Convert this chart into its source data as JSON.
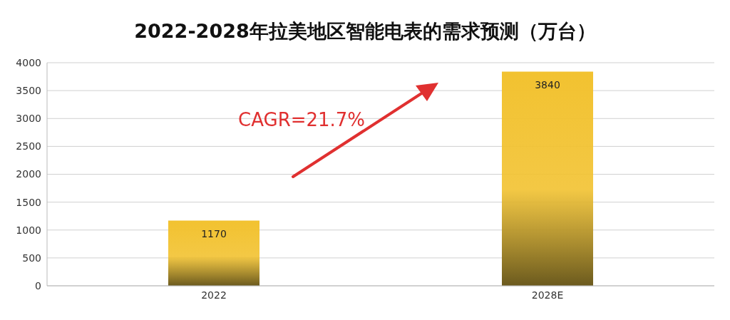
{
  "chart_data": {
    "type": "bar",
    "title": "2022-2028年拉美地区智能电表的需求预测（万台）",
    "categories": [
      "2022",
      "2028E"
    ],
    "values": [
      1170,
      3840
    ],
    "color": "#f2c230",
    "ylim": [
      0,
      4000
    ],
    "yticks": [
      0,
      500,
      1000,
      1500,
      2000,
      2500,
      3000,
      3500,
      4000
    ],
    "grid": "y",
    "data_labels": true,
    "annotations": [
      "CAGR=21.7%"
    ]
  }
}
